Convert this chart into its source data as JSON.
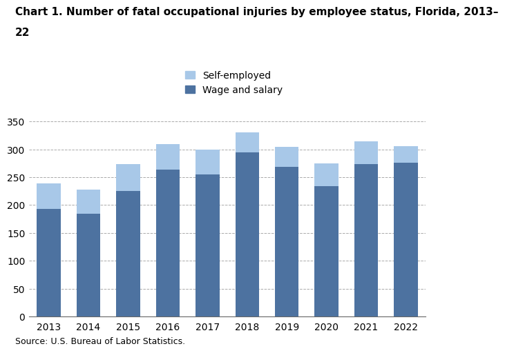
{
  "years": [
    2013,
    2014,
    2015,
    2016,
    2017,
    2018,
    2019,
    2020,
    2021,
    2022
  ],
  "wage_and_salary": [
    193,
    184,
    225,
    264,
    255,
    295,
    269,
    234,
    274,
    276
  ],
  "self_employed": [
    46,
    44,
    48,
    45,
    44,
    36,
    36,
    41,
    41,
    30
  ],
  "wage_color": "#4d72a0",
  "self_color": "#a8c8e8",
  "title_line1": "Chart 1. Number of fatal occupational injuries by employee status, Florida, 2013–",
  "title_line2": "22",
  "legend_labels": [
    "Self-employed",
    "Wage and salary"
  ],
  "ylim": [
    0,
    350
  ],
  "yticks": [
    0,
    50,
    100,
    150,
    200,
    250,
    300,
    350
  ],
  "source_text": "Source: U.S. Bureau of Labor Statistics.",
  "title_fontsize": 11,
  "tick_fontsize": 10,
  "legend_fontsize": 10,
  "source_fontsize": 9,
  "background_color": "#ffffff"
}
